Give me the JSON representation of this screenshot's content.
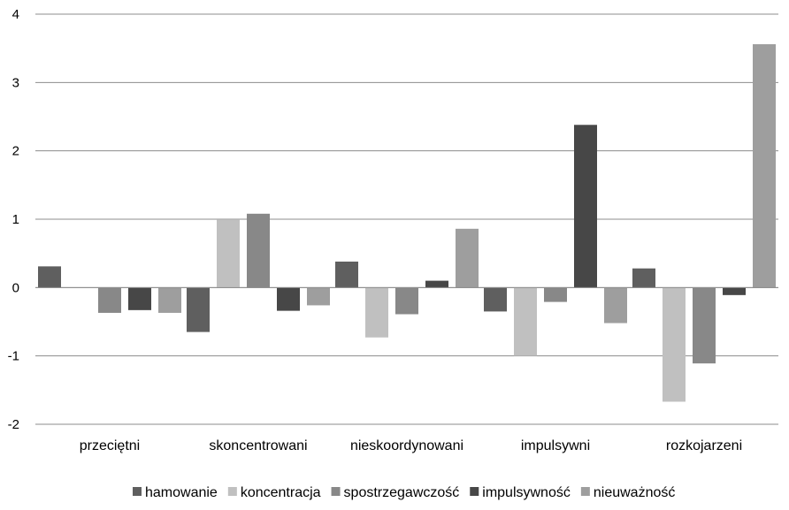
{
  "chart_data": {
    "type": "bar",
    "title": "",
    "xlabel": "",
    "ylabel": "",
    "ylim": [
      -2,
      4
    ],
    "yticks": [
      -2,
      -1,
      0,
      1,
      2,
      3,
      4
    ],
    "grid": true,
    "legend_position": "bottom-right",
    "categories": [
      "przeciętni",
      "skoncentrowani",
      "nieskoordynowani",
      "impulsywni",
      "rozkojarzeni"
    ],
    "series": [
      {
        "name": "hamowanie",
        "color": "#5f5f5f",
        "values": [
          0.31,
          -0.65,
          0.38,
          -0.35,
          0.28
        ]
      },
      {
        "name": "koncentracja",
        "color": "#c0c0c0",
        "values": [
          0.0,
          0.99,
          -0.73,
          -1.0,
          -1.67
        ]
      },
      {
        "name": "spostrzegawczość",
        "color": "#888888",
        "values": [
          -0.37,
          1.08,
          -0.39,
          -0.21,
          -1.11
        ]
      },
      {
        "name": "impulsywność",
        "color": "#474747",
        "values": [
          -0.33,
          -0.34,
          0.1,
          2.38,
          -0.11
        ]
      },
      {
        "name": "nieuważność",
        "color": "#9e9e9e",
        "values": [
          -0.37,
          -0.26,
          0.86,
          -0.52,
          3.56
        ]
      }
    ]
  }
}
